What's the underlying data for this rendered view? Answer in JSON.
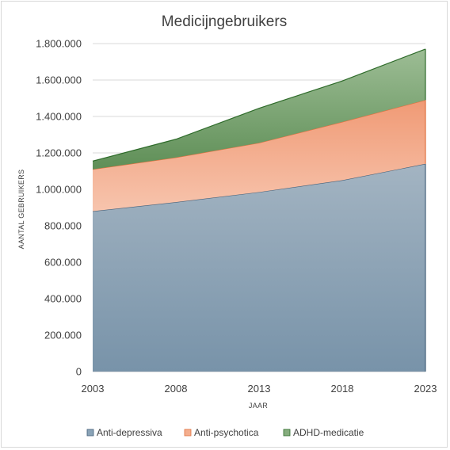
{
  "chart_data": {
    "type": "area",
    "stacked": true,
    "title": "Medicijngebruikers",
    "xlabel": "JAAR",
    "ylabel": "AANTAL GEBRUIKERS",
    "x": [
      "2003",
      "2008",
      "2013",
      "2018",
      "2023"
    ],
    "ylim": [
      0,
      1800000
    ],
    "y_ticks": [
      "0",
      "200.000",
      "400.000",
      "600.000",
      "800.000",
      "1.000.000",
      "1.200.000",
      "1.400.000",
      "1.600.000",
      "1.800.000"
    ],
    "grid": true,
    "legend_position": "bottom",
    "series": [
      {
        "name": "Anti-depressiva",
        "values": [
          880000,
          930000,
          985000,
          1050000,
          1140000
        ],
        "color": "#7b96ab"
      },
      {
        "name": "Anti-psychotica",
        "values": [
          230000,
          245000,
          270000,
          320000,
          350000
        ],
        "color": "#f2a07b"
      },
      {
        "name": "ADHD-medicatie",
        "values": [
          45000,
          100000,
          190000,
          225000,
          280000
        ],
        "color": "#7aa571"
      }
    ]
  }
}
